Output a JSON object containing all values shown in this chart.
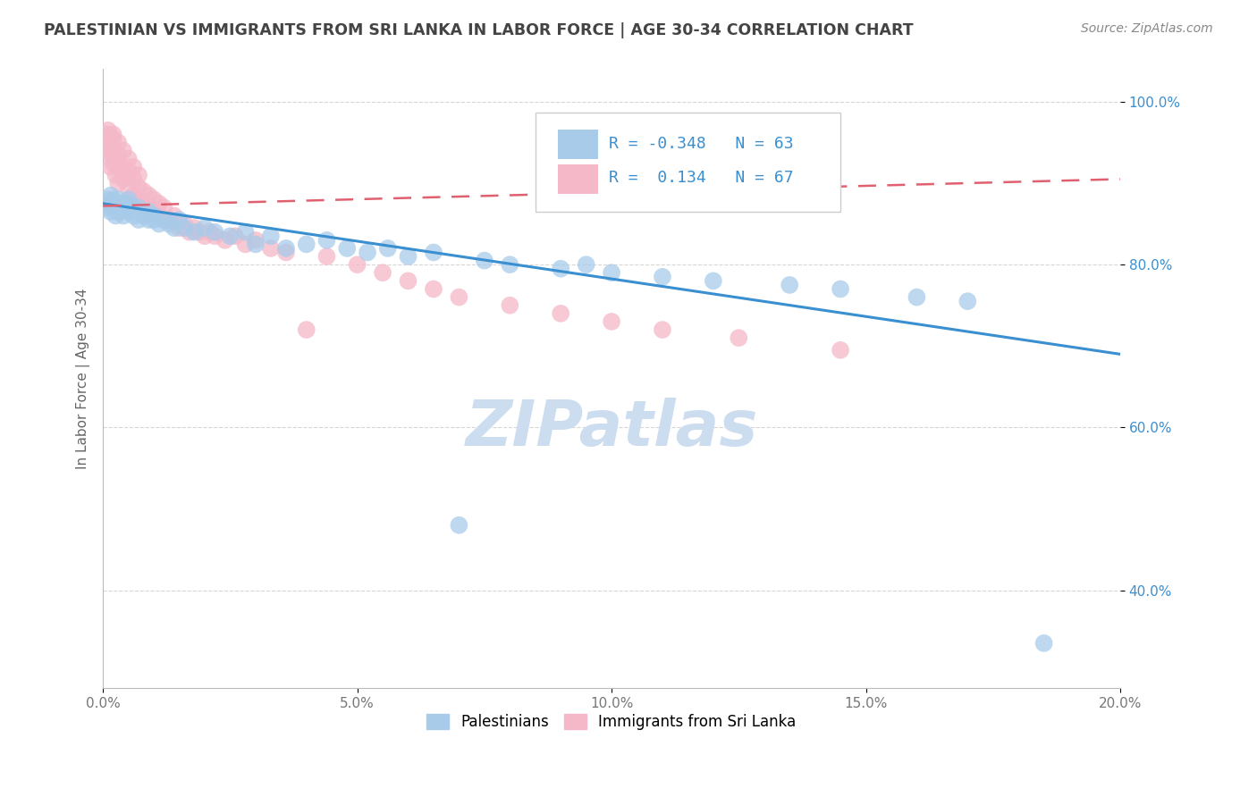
{
  "title": "PALESTINIAN VS IMMIGRANTS FROM SRI LANKA IN LABOR FORCE | AGE 30-34 CORRELATION CHART",
  "source": "Source: ZipAtlas.com",
  "xlabel": "",
  "ylabel": "In Labor Force | Age 30-34",
  "xlim": [
    0.0,
    0.2
  ],
  "ylim": [
    0.28,
    1.04
  ],
  "xticks": [
    0.0,
    0.05,
    0.1,
    0.15,
    0.2
  ],
  "xtick_labels": [
    "0.0%",
    "5.0%",
    "10.0%",
    "15.0%",
    "20.0%"
  ],
  "yticks": [
    0.4,
    0.6,
    0.8,
    1.0
  ],
  "ytick_labels": [
    "40.0%",
    "60.0%",
    "80.0%",
    "100.0%"
  ],
  "blue_R": -0.348,
  "blue_N": 63,
  "pink_R": 0.134,
  "pink_N": 67,
  "blue_color": "#a8cbea",
  "pink_color": "#f4b8c8",
  "blue_edge_color": "#7aabda",
  "pink_edge_color": "#e890a8",
  "blue_line_color": "#3a8fd0",
  "pink_line_color": "#e06070",
  "background_color": "#ffffff",
  "grid_color": "#cccccc",
  "title_color": "#444444",
  "watermark_color": "#ccddf0",
  "legend_label_blue": "Palestinians",
  "legend_label_pink": "Immigrants from Sri Lanka",
  "blue_trend_x": [
    0.0,
    0.2
  ],
  "blue_trend_y": [
    0.875,
    0.69
  ],
  "pink_trend_x": [
    0.0,
    0.2
  ],
  "pink_trend_y": [
    0.872,
    0.905
  ],
  "blue_x": [
    0.0005,
    0.001,
    0.001,
    0.0015,
    0.0015,
    0.002,
    0.002,
    0.002,
    0.0025,
    0.0025,
    0.003,
    0.003,
    0.003,
    0.003,
    0.004,
    0.004,
    0.004,
    0.005,
    0.005,
    0.005,
    0.006,
    0.006,
    0.007,
    0.007,
    0.008,
    0.009,
    0.009,
    0.01,
    0.01,
    0.011,
    0.012,
    0.013,
    0.014,
    0.015,
    0.016,
    0.018,
    0.02,
    0.022,
    0.025,
    0.028,
    0.03,
    0.033,
    0.036,
    0.04,
    0.044,
    0.048,
    0.052,
    0.056,
    0.06,
    0.065,
    0.07,
    0.075,
    0.08,
    0.09,
    0.095,
    0.1,
    0.11,
    0.12,
    0.135,
    0.145,
    0.16,
    0.17,
    0.185
  ],
  "blue_y": [
    0.87,
    0.875,
    0.88,
    0.865,
    0.885,
    0.87,
    0.875,
    0.88,
    0.86,
    0.875,
    0.865,
    0.87,
    0.875,
    0.88,
    0.86,
    0.87,
    0.875,
    0.865,
    0.875,
    0.88,
    0.86,
    0.87,
    0.855,
    0.87,
    0.86,
    0.855,
    0.865,
    0.855,
    0.86,
    0.85,
    0.855,
    0.85,
    0.845,
    0.855,
    0.845,
    0.84,
    0.845,
    0.84,
    0.835,
    0.84,
    0.825,
    0.835,
    0.82,
    0.825,
    0.83,
    0.82,
    0.815,
    0.82,
    0.81,
    0.815,
    0.48,
    0.805,
    0.8,
    0.795,
    0.8,
    0.79,
    0.785,
    0.78,
    0.775,
    0.77,
    0.76,
    0.755,
    0.335
  ],
  "pink_x": [
    0.0003,
    0.0005,
    0.001,
    0.001,
    0.001,
    0.0015,
    0.0015,
    0.002,
    0.002,
    0.002,
    0.002,
    0.0025,
    0.003,
    0.003,
    0.003,
    0.003,
    0.004,
    0.004,
    0.004,
    0.005,
    0.005,
    0.005,
    0.006,
    0.006,
    0.006,
    0.007,
    0.007,
    0.007,
    0.008,
    0.008,
    0.009,
    0.009,
    0.01,
    0.01,
    0.011,
    0.011,
    0.012,
    0.012,
    0.013,
    0.014,
    0.015,
    0.016,
    0.017,
    0.018,
    0.019,
    0.02,
    0.021,
    0.022,
    0.024,
    0.026,
    0.028,
    0.03,
    0.033,
    0.036,
    0.04,
    0.044,
    0.05,
    0.055,
    0.06,
    0.065,
    0.07,
    0.08,
    0.09,
    0.1,
    0.11,
    0.125,
    0.145
  ],
  "pink_y": [
    0.875,
    0.96,
    0.94,
    0.95,
    0.965,
    0.92,
    0.935,
    0.925,
    0.94,
    0.955,
    0.96,
    0.91,
    0.9,
    0.92,
    0.935,
    0.95,
    0.905,
    0.92,
    0.94,
    0.895,
    0.915,
    0.93,
    0.885,
    0.905,
    0.92,
    0.88,
    0.895,
    0.91,
    0.875,
    0.89,
    0.87,
    0.885,
    0.865,
    0.88,
    0.86,
    0.875,
    0.855,
    0.87,
    0.855,
    0.86,
    0.845,
    0.85,
    0.84,
    0.845,
    0.84,
    0.835,
    0.84,
    0.835,
    0.83,
    0.835,
    0.825,
    0.83,
    0.82,
    0.815,
    0.72,
    0.81,
    0.8,
    0.79,
    0.78,
    0.77,
    0.76,
    0.75,
    0.74,
    0.73,
    0.72,
    0.71,
    0.695
  ]
}
